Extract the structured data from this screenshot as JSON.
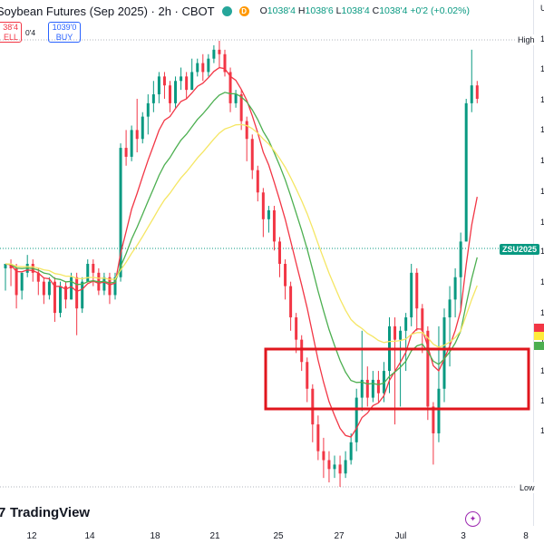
{
  "header": {
    "title": "Soybean Futures (Sep 2025) · 2h · CBOT",
    "badge_d": "D",
    "ohlc": {
      "o_label": "O",
      "o": "1038'4",
      "h_label": "H",
      "h": "1038'6",
      "l_label": "L",
      "l": "1038'4",
      "c_label": "C",
      "c": "1038'4",
      "change": "+0'2 (+0.02%)"
    }
  },
  "trade": {
    "sell_price": "38'4",
    "sell_label": "ELL",
    "spread": "0'4",
    "buy_price": "1039'0",
    "buy_label": "BUY"
  },
  "logo_text": "TradingView",
  "price_labels": {
    "high": "High",
    "low": "Low",
    "symbol": "ZSU2025"
  },
  "right_scale_glyphs": [
    "U",
    "1",
    "1",
    "1",
    "1",
    "1",
    "1",
    "1",
    "1",
    "1",
    "1",
    "1",
    "1",
    "1",
    "1"
  ],
  "colors": {
    "up": "#089981",
    "down": "#f23645",
    "ma_fast": "#f23645",
    "ma_mid": "#4caf50",
    "ma_slow": "#f5e663",
    "box": "#e0161d"
  },
  "chart_data": {
    "type": "candlestick",
    "symbol": "ZSU2025",
    "timeframe": "2h",
    "x_tick_labels": [
      "12",
      "14",
      "18",
      "21",
      "25",
      "27",
      "Jul",
      "3",
      "8"
    ],
    "last_close": "1038'4",
    "candles_relative": [
      [
        0.49,
        0.5,
        0.44,
        0.5
      ],
      [
        0.5,
        0.49,
        0.45,
        0.51
      ],
      [
        0.49,
        0.43,
        0.4,
        0.5
      ],
      [
        0.44,
        0.48,
        0.42,
        0.48
      ],
      [
        0.48,
        0.5,
        0.47,
        0.52
      ],
      [
        0.5,
        0.48,
        0.46,
        0.51
      ],
      [
        0.48,
        0.46,
        0.43,
        0.49
      ],
      [
        0.46,
        0.43,
        0.41,
        0.47
      ],
      [
        0.43,
        0.46,
        0.42,
        0.47
      ],
      [
        0.46,
        0.39,
        0.37,
        0.47
      ],
      [
        0.39,
        0.45,
        0.38,
        0.46
      ],
      [
        0.45,
        0.42,
        0.4,
        0.46
      ],
      [
        0.42,
        0.47,
        0.42,
        0.48
      ],
      [
        0.47,
        0.4,
        0.34,
        0.48
      ],
      [
        0.4,
        0.46,
        0.39,
        0.47
      ],
      [
        0.46,
        0.5,
        0.46,
        0.51
      ],
      [
        0.5,
        0.48,
        0.45,
        0.51
      ],
      [
        0.48,
        0.44,
        0.43,
        0.49
      ],
      [
        0.44,
        0.47,
        0.43,
        0.48
      ],
      [
        0.47,
        0.43,
        0.41,
        0.48
      ],
      [
        0.43,
        0.47,
        0.42,
        0.48
      ],
      [
        0.47,
        0.76,
        0.46,
        0.77
      ],
      [
        0.76,
        0.74,
        0.72,
        0.8
      ],
      [
        0.74,
        0.8,
        0.73,
        0.81
      ],
      [
        0.8,
        0.78,
        0.75,
        0.87
      ],
      [
        0.78,
        0.83,
        0.77,
        0.84
      ],
      [
        0.83,
        0.86,
        0.79,
        0.88
      ],
      [
        0.86,
        0.88,
        0.84,
        0.91
      ],
      [
        0.88,
        0.92,
        0.86,
        0.93
      ],
      [
        0.92,
        0.9,
        0.87,
        0.93
      ],
      [
        0.9,
        0.86,
        0.84,
        0.91
      ],
      [
        0.86,
        0.91,
        0.85,
        0.92
      ],
      [
        0.91,
        0.92,
        0.89,
        0.94
      ],
      [
        0.92,
        0.89,
        0.87,
        0.93
      ],
      [
        0.89,
        0.93,
        0.89,
        0.96
      ],
      [
        0.93,
        0.95,
        0.92,
        0.96
      ],
      [
        0.95,
        0.93,
        0.91,
        0.97
      ],
      [
        0.93,
        0.96,
        0.92,
        0.97
      ],
      [
        0.96,
        0.98,
        0.95,
        0.99
      ],
      [
        0.98,
        0.97,
        0.94,
        1.0
      ],
      [
        0.97,
        0.93,
        0.92,
        0.98
      ],
      [
        0.93,
        0.86,
        0.84,
        0.94
      ],
      [
        0.86,
        0.88,
        0.85,
        0.89
      ],
      [
        0.88,
        0.82,
        0.8,
        0.89
      ],
      [
        0.82,
        0.78,
        0.73,
        0.83
      ],
      [
        0.78,
        0.71,
        0.69,
        0.79
      ],
      [
        0.71,
        0.66,
        0.64,
        0.72
      ],
      [
        0.66,
        0.6,
        0.56,
        0.67
      ],
      [
        0.6,
        0.62,
        0.57,
        0.63
      ],
      [
        0.62,
        0.55,
        0.53,
        0.63
      ],
      [
        0.55,
        0.5,
        0.47,
        0.56
      ],
      [
        0.5,
        0.45,
        0.42,
        0.51
      ],
      [
        0.45,
        0.38,
        0.35,
        0.46
      ],
      [
        0.38,
        0.33,
        0.3,
        0.39
      ],
      [
        0.33,
        0.28,
        0.26,
        0.34
      ],
      [
        0.28,
        0.22,
        0.19,
        0.29
      ],
      [
        0.22,
        0.14,
        0.1,
        0.23
      ],
      [
        0.14,
        0.08,
        0.06,
        0.16
      ],
      [
        0.08,
        0.06,
        0.02,
        0.11
      ],
      [
        0.06,
        0.04,
        0.01,
        0.08
      ],
      [
        0.04,
        0.05,
        0.02,
        0.07
      ],
      [
        0.05,
        0.03,
        0.0,
        0.07
      ],
      [
        0.03,
        0.06,
        0.02,
        0.08
      ],
      [
        0.06,
        0.1,
        0.05,
        0.12
      ],
      [
        0.1,
        0.2,
        0.08,
        0.22
      ],
      [
        0.2,
        0.24,
        0.17,
        0.35
      ],
      [
        0.24,
        0.2,
        0.18,
        0.27
      ],
      [
        0.2,
        0.24,
        0.19,
        0.26
      ],
      [
        0.24,
        0.21,
        0.19,
        0.26
      ],
      [
        0.21,
        0.26,
        0.19,
        0.28
      ],
      [
        0.26,
        0.36,
        0.21,
        0.38
      ],
      [
        0.36,
        0.33,
        0.14,
        0.38
      ],
      [
        0.33,
        0.35,
        0.18,
        0.36
      ],
      [
        0.35,
        0.38,
        0.26,
        0.39
      ],
      [
        0.38,
        0.48,
        0.36,
        0.5
      ],
      [
        0.48,
        0.4,
        0.35,
        0.49
      ],
      [
        0.4,
        0.35,
        0.3,
        0.41
      ],
      [
        0.35,
        0.18,
        0.15,
        0.36
      ],
      [
        0.18,
        0.12,
        0.05,
        0.19
      ],
      [
        0.12,
        0.22,
        0.1,
        0.36
      ],
      [
        0.22,
        0.38,
        0.19,
        0.4
      ],
      [
        0.38,
        0.42,
        0.27,
        0.45
      ],
      [
        0.42,
        0.47,
        0.38,
        0.49
      ],
      [
        0.47,
        0.55,
        0.4,
        0.57
      ],
      [
        0.55,
        0.86,
        0.55,
        0.87
      ],
      [
        0.86,
        0.9,
        0.84,
        0.98
      ],
      [
        0.9,
        0.87,
        0.86,
        0.91
      ]
    ],
    "moving_averages": [
      {
        "color": "#f23645"
      },
      {
        "color": "#4caf50"
      },
      {
        "color": "#f5e663"
      }
    ]
  }
}
